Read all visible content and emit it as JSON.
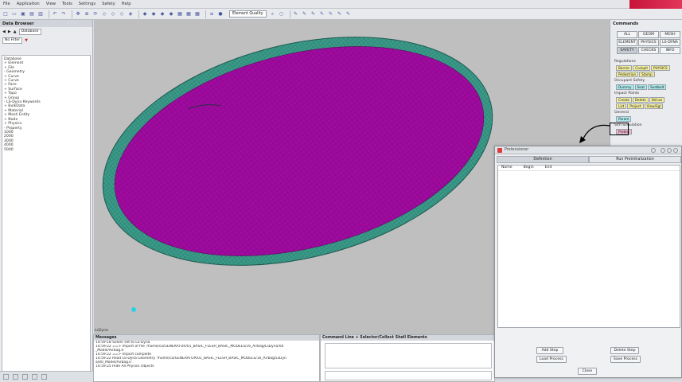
{
  "menu": [
    "File",
    "Application",
    "View",
    "Tools",
    "Settings",
    "Safety",
    "Help"
  ],
  "toolbar": {
    "quality": "Element Quality"
  },
  "left_panel": {
    "title": "Data Browser",
    "nav_select": "Database",
    "filter_select": "No Filter",
    "tree": [
      "Database",
      "+ Element",
      "+ File",
      "- Geometry",
      "   + Curve",
      "   + Curve",
      "   + Face",
      "   + Surface",
      "   + Topo",
      "+ Group",
      "- LS-Dyna Keywords",
      "   + BulkData",
      "+ Material",
      "+ Mesh Entity",
      "+ Node",
      "+ Physics",
      "- Property",
      "     1000",
      "     2000",
      "     3000",
      "     4000",
      "     5000"
    ]
  },
  "viewport": {
    "label": "LsDyna"
  },
  "messages": {
    "title": "Messages",
    "lines": [
      "14:59:18  Solver set to LS-Dyna",
      "14:59:22  ==> Import of file '/home/ca/GENERATOR/01_BASIC_FLESH_BASIC_MODELS/16_Airbag/LsDyna/00",
      "_Model/Airbag.k'",
      "14:59:22  ==> Import complete",
      "",
      "14:59:22  Read LS-Dyna Geometry '/home/ca/GENERATOR/01_BASIC_FLESH_BASIC_MODELS/16_Airbag/LsDyn",
      "a/00_Model/Airbag.k'",
      "14:59:25  Hide All Physics Objects"
    ]
  },
  "cmdline": {
    "title": "Command Line + Selector/Collect Shell Elements"
  },
  "commands": {
    "title": "Commands",
    "grid": [
      "ALL",
      "GEOM",
      "MESH",
      "ELEMENT",
      "PHYSICS",
      "LS-DYNA",
      "SAFETY",
      "CHECKS",
      "INFO"
    ],
    "regulations_label": "Regulations",
    "regulations": [
      "Barrier",
      "Cockpit",
      "PHYSICS"
    ],
    "regulations2": [
      "Pedestrian",
      "Stamp"
    ],
    "occupant_label": "Occupant Safety",
    "occupant": [
      "Dummy",
      "Seat",
      "Seatbelt"
    ],
    "impact_label": "Impact Points",
    "impact": [
      "Create",
      "Delete",
      "Ddl.an"
    ],
    "impact2": [
      "List",
      "Project",
      "View/Sgl"
    ],
    "general_label": "General",
    "general": [
      "Param"
    ],
    "sim_label": "Sim Simulation",
    "sim": [
      "Preten"
    ]
  },
  "dialog": {
    "title": "Pretensioner",
    "tabs": [
      "Definition",
      "Run Preinitialization"
    ],
    "columns": [
      "Name",
      "Begin",
      "End"
    ],
    "add_step": "Add Step",
    "delete_step": "Delete Step",
    "load_process": "Load Process",
    "save_process": "Save Process",
    "close": "Close"
  },
  "colors": {
    "magenta": "#a00aa0",
    "teal": "#3a9a88",
    "brand": "#c8143a"
  }
}
